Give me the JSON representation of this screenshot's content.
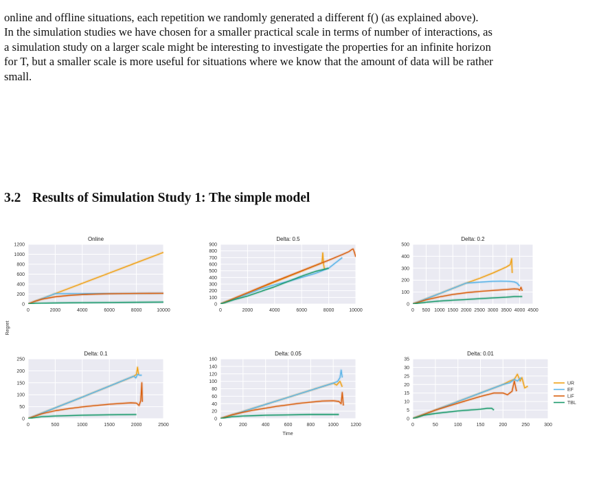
{
  "paragraph": {
    "lines": [
      "online and offline situations, each repetition we randomly generated a different f() (as explained above).",
      "In the simulation studies we have chosen for a smaller practical scale in terms of number of interactions, as",
      "a simulation study on a larger scale might be interesting to investigate the properties for an infinite horizon",
      "for T, but a smaller scale is more useful for situations where we know that the amount of data will be rather",
      "small."
    ]
  },
  "section": {
    "number": "3.2",
    "title": "Results of Simulation Study 1: The simple model"
  },
  "colors": {
    "UR": "#f0a116",
    "EF": "#5ab4e8",
    "LiF": "#d95f0e",
    "TBL": "#1a9a6c",
    "panel_bg": "#eaeaf2",
    "grid": "#ffffff"
  },
  "figure": {
    "ylabel": "Regret",
    "xlabel": "Time"
  },
  "chart_data": [
    {
      "type": "line",
      "title": "Online",
      "xlim": [
        0,
        10000
      ],
      "ylim": [
        0,
        1200
      ],
      "xticks": [
        0,
        2000,
        4000,
        6000,
        8000,
        10000
      ],
      "yticks": [
        0,
        200,
        400,
        600,
        800,
        1000,
        1200
      ],
      "series": [
        {
          "name": "UR",
          "x": [
            0,
            2000,
            4000,
            6000,
            8000,
            10000
          ],
          "y": [
            0,
            208,
            415,
            622,
            830,
            1037
          ]
        },
        {
          "name": "EF",
          "x": [
            0,
            2000,
            4000,
            6000,
            8000,
            10000
          ],
          "y": [
            0,
            208,
            208,
            210,
            212,
            215
          ]
        },
        {
          "name": "LiF",
          "x": [
            0,
            500,
            1000,
            2000,
            3000,
            4000,
            5000,
            6000,
            7000,
            8000,
            9000,
            10000
          ],
          "y": [
            0,
            55,
            95,
            145,
            172,
            189,
            199,
            205,
            209,
            212,
            214,
            215
          ]
        },
        {
          "name": "TBL",
          "x": [
            0,
            500,
            1000,
            2000,
            4000,
            6000,
            8000,
            10000
          ],
          "y": [
            0,
            12,
            16,
            20,
            26,
            30,
            34,
            38
          ]
        }
      ]
    },
    {
      "type": "line",
      "title": "Delta: 0.5",
      "xlim": [
        0,
        10000
      ],
      "ylim": [
        0,
        900
      ],
      "xticks": [
        0,
        2000,
        4000,
        6000,
        8000,
        10000
      ],
      "yticks": [
        0,
        100,
        200,
        300,
        400,
        500,
        600,
        700,
        800,
        900
      ],
      "series": [
        {
          "name": "UR",
          "x": [
            0,
            2000,
            4000,
            6000,
            7500,
            7560,
            7620,
            7700
          ],
          "y": [
            0,
            165,
            330,
            495,
            620,
            770,
            600,
            510
          ]
        },
        {
          "name": "EF",
          "x": [
            0,
            2000,
            3000,
            4000,
            5000,
            6000,
            7000,
            8000,
            8500,
            9000
          ],
          "y": [
            0,
            150,
            230,
            290,
            340,
            400,
            460,
            540,
            620,
            700
          ]
        },
        {
          "name": "LiF",
          "x": [
            0,
            2000,
            4000,
            6000,
            7000,
            8000,
            9000,
            9500,
            9700,
            9800,
            9900,
            10000
          ],
          "y": [
            0,
            170,
            340,
            500,
            580,
            660,
            745,
            790,
            820,
            830,
            780,
            710
          ]
        },
        {
          "name": "TBL",
          "x": [
            0,
            1000,
            2000,
            3000,
            4000,
            5000,
            6000,
            7000,
            8000
          ],
          "y": [
            0,
            65,
            120,
            190,
            260,
            340,
            420,
            490,
            540
          ]
        }
      ]
    },
    {
      "type": "line",
      "title": "Delta: 0.2",
      "xlim": [
        0,
        4500
      ],
      "ylim": [
        0,
        500
      ],
      "xticks": [
        0,
        500,
        1000,
        1500,
        2000,
        2500,
        3000,
        3500,
        4000,
        4500
      ],
      "yticks": [
        0,
        100,
        200,
        300,
        400,
        500
      ],
      "series": [
        {
          "name": "UR",
          "x": [
            0,
            1000,
            2000,
            2500,
            3000,
            3500,
            3650,
            3700,
            3720
          ],
          "y": [
            0,
            87,
            175,
            215,
            260,
            310,
            330,
            380,
            260
          ]
        },
        {
          "name": "EF",
          "x": [
            0,
            1000,
            2000,
            2500,
            3000,
            3300,
            3600,
            3800,
            3900,
            4000
          ],
          "y": [
            0,
            87,
            175,
            183,
            190,
            192,
            190,
            185,
            175,
            150
          ]
        },
        {
          "name": "LiF",
          "x": [
            0,
            500,
            1000,
            1500,
            2000,
            2500,
            3000,
            3500,
            3800,
            3950,
            4000,
            4050,
            4100
          ],
          "y": [
            0,
            35,
            60,
            80,
            95,
            105,
            113,
            122,
            127,
            125,
            115,
            140,
            110
          ]
        },
        {
          "name": "TBL",
          "x": [
            0,
            500,
            1000,
            1500,
            2000,
            2500,
            3000,
            3500,
            3800,
            4100
          ],
          "y": [
            0,
            15,
            25,
            32,
            38,
            45,
            51,
            57,
            62,
            62
          ]
        }
      ]
    },
    {
      "type": "line",
      "title": "Delta: 0.1",
      "xlim": [
        0,
        2500
      ],
      "ylim": [
        0,
        250
      ],
      "xticks": [
        0,
        500,
        1000,
        1500,
        2000,
        2500
      ],
      "yticks": [
        0,
        50,
        100,
        150,
        200,
        250
      ],
      "series": [
        {
          "name": "UR",
          "x": [
            0,
            500,
            1000,
            1500,
            1950,
            2000,
            2020,
            2040
          ],
          "y": [
            0,
            45,
            90,
            136,
            177,
            185,
            215,
            185
          ]
        },
        {
          "name": "EF",
          "x": [
            0,
            500,
            1000,
            1500,
            1950,
            1990,
            2020,
            2060,
            2100
          ],
          "y": [
            0,
            45,
            90,
            136,
            178,
            170,
            185,
            182,
            182
          ]
        },
        {
          "name": "LiF",
          "x": [
            0,
            250,
            500,
            750,
            1000,
            1250,
            1500,
            1750,
            1900,
            2000,
            2050,
            2080,
            2100,
            2110
          ],
          "y": [
            0,
            20,
            33,
            42,
            49,
            55,
            60,
            64,
            66,
            65,
            55,
            75,
            150,
            70
          ]
        },
        {
          "name": "TBL",
          "x": [
            0,
            250,
            500,
            1000,
            1500,
            2000
          ],
          "y": [
            0,
            8,
            11,
            14,
            16,
            17
          ]
        }
      ]
    },
    {
      "type": "line",
      "title": "Delta: 0.05",
      "xlim": [
        0,
        1200
      ],
      "ylim": [
        0,
        160
      ],
      "xticks": [
        0,
        200,
        400,
        600,
        800,
        1000,
        1200
      ],
      "yticks": [
        0,
        20,
        40,
        60,
        80,
        100,
        120,
        140,
        160
      ],
      "series": [
        {
          "name": "UR",
          "x": [
            0,
            200,
            400,
            600,
            800,
            1000,
            1030,
            1060,
            1080
          ],
          "y": [
            0,
            19,
            38,
            57,
            76,
            95,
            90,
            100,
            85
          ]
        },
        {
          "name": "EF",
          "x": [
            0,
            200,
            400,
            600,
            800,
            1000,
            1040,
            1060,
            1070,
            1080
          ],
          "y": [
            0,
            19,
            38,
            57,
            76,
            95,
            100,
            110,
            130,
            110
          ]
        },
        {
          "name": "LiF",
          "x": [
            0,
            100,
            200,
            300,
            400,
            500,
            600,
            700,
            800,
            900,
            1000,
            1050,
            1070,
            1080,
            1090
          ],
          "y": [
            0,
            10,
            17,
            23,
            28,
            33,
            37,
            41,
            44,
            47,
            48,
            46,
            40,
            70,
            35
          ]
        },
        {
          "name": "TBL",
          "x": [
            0,
            100,
            200,
            400,
            600,
            800,
            1000,
            1050
          ],
          "y": [
            0,
            5,
            7,
            9,
            10,
            11,
            11,
            11
          ]
        }
      ]
    },
    {
      "type": "line",
      "title": "Delta: 0.01",
      "xlim": [
        0,
        300
      ],
      "ylim": [
        0,
        35
      ],
      "xticks": [
        0,
        50,
        100,
        150,
        200,
        250,
        300
      ],
      "yticks": [
        0,
        5,
        10,
        15,
        20,
        25,
        30,
        35
      ],
      "series": [
        {
          "name": "UR",
          "x": [
            0,
            50,
            100,
            150,
            200,
            215,
            225,
            232,
            238,
            242,
            248,
            255
          ],
          "y": [
            0,
            5,
            10,
            15,
            20,
            22,
            23,
            26,
            22,
            24,
            18,
            19
          ]
        },
        {
          "name": "EF",
          "x": [
            0,
            50,
            100,
            150,
            200,
            215,
            225,
            232,
            240
          ],
          "y": [
            0,
            5,
            10,
            15,
            20,
            21,
            23,
            22,
            24
          ]
        },
        {
          "name": "LiF",
          "x": [
            0,
            50,
            100,
            150,
            180,
            200,
            210,
            220,
            225,
            230
          ],
          "y": [
            0,
            5,
            9,
            13,
            15,
            15,
            14,
            16,
            22,
            16
          ]
        },
        {
          "name": "TBL",
          "x": [
            0,
            25,
            50,
            100,
            150,
            165,
            175,
            180
          ],
          "y": [
            0,
            2,
            3,
            4.5,
            5.5,
            6,
            6,
            5
          ]
        }
      ]
    }
  ]
}
